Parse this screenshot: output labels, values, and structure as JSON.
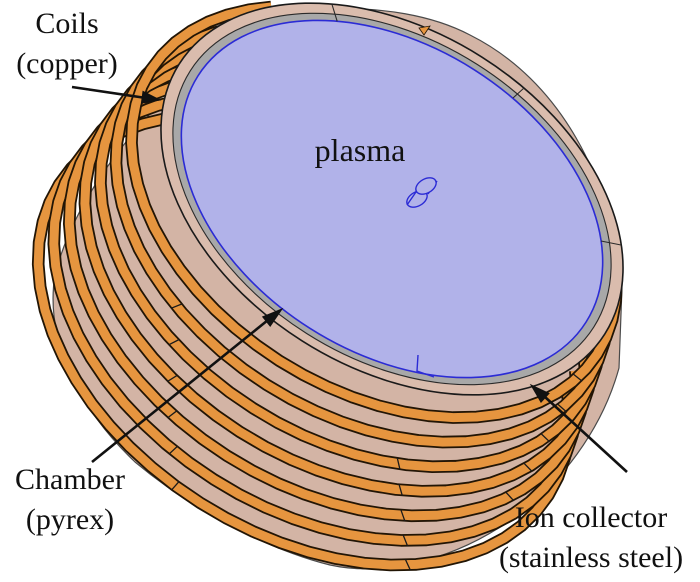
{
  "figure": {
    "description": "3D model of plasma chamber with copper coils and ion collector"
  },
  "labels": {
    "coils": {
      "line1": "Coils",
      "line2": "(copper)"
    },
    "plasma": "plasma",
    "chamber": {
      "line1": "Chamber",
      "line2": "(pyrex)"
    },
    "ion_collector": {
      "line1": "Ion collector",
      "line2": "(stainless steel)"
    }
  },
  "colors": {
    "background": "#ffffff",
    "copper": "#E6953F",
    "copper_outline": "#221505",
    "chamber_tan": "#D3B4A5",
    "rim_tan": "#DABCAD",
    "steel_gray": "#A8A8A8",
    "steel_edge": "#2a2a2a",
    "plasma_fill": "#B1B2E9",
    "plasma_border": "#2B2BD5",
    "text": "#111111",
    "arrow": "#111111"
  }
}
